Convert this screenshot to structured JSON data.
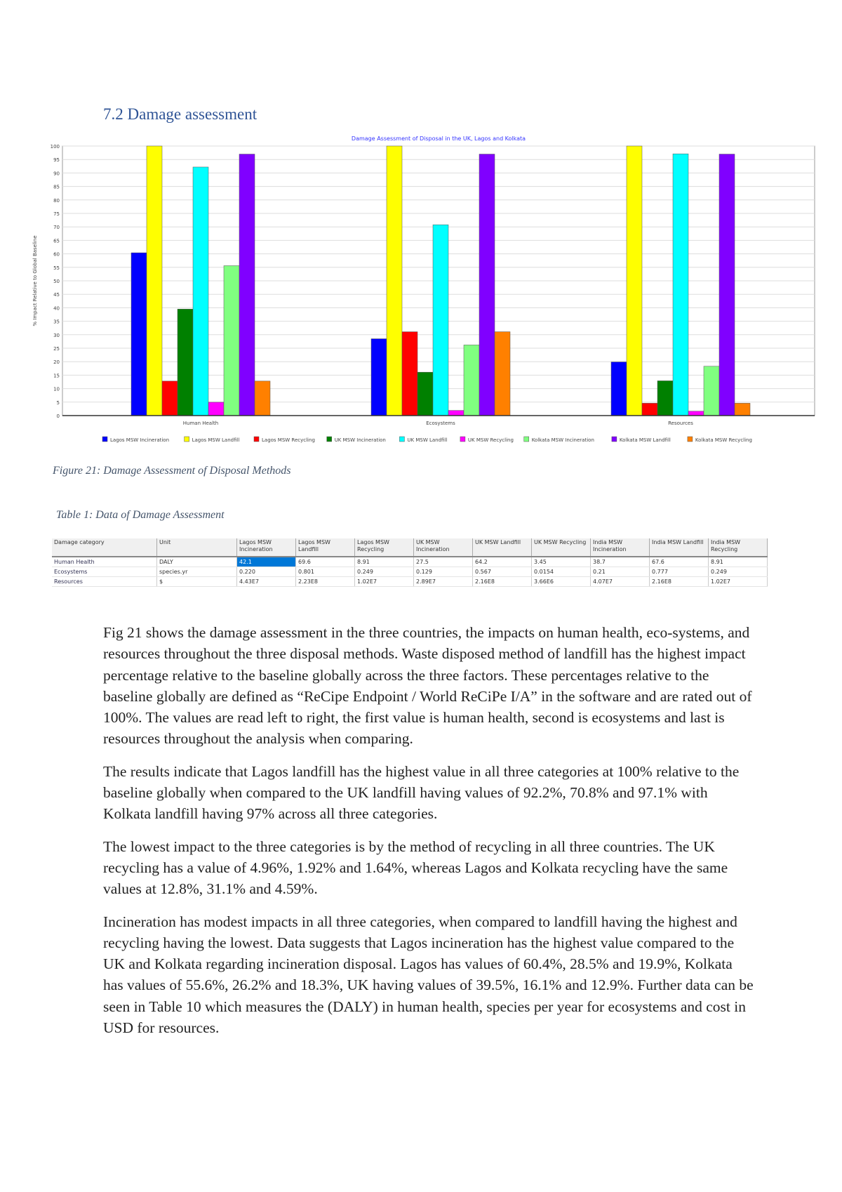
{
  "heading": "7.2 Damage assessment",
  "figure_caption": "Figure 21: Damage Assessment of Disposal Methods",
  "table_caption": "Table 1: Data of Damage Assessment",
  "chart_data": {
    "type": "bar",
    "title": "Damage Assessment of Disposal in the UK, Lagos and Kolkata",
    "xlabel": "",
    "ylabel": "% Impact Relative to Global Baseline",
    "ylim": [
      0,
      100
    ],
    "yticks": [
      0,
      5,
      10,
      15,
      20,
      25,
      30,
      35,
      40,
      45,
      50,
      55,
      60,
      65,
      70,
      75,
      80,
      85,
      90,
      95,
      100
    ],
    "grid": true,
    "legend": "bottom",
    "categories": [
      "Human Health",
      "Ecosystems",
      "Resources"
    ],
    "series": [
      {
        "name": "Lagos MSW Incineration",
        "color": "#0000ff",
        "values": [
          60.4,
          28.5,
          19.9
        ]
      },
      {
        "name": "Lagos MSW Landfill",
        "color": "#ffff00",
        "values": [
          100,
          100,
          100
        ]
      },
      {
        "name": "Lagos MSW Recycling",
        "color": "#ff0000",
        "values": [
          12.8,
          31.1,
          4.59
        ]
      },
      {
        "name": "UK MSW Incineration",
        "color": "#008000",
        "values": [
          39.5,
          16.1,
          12.9
        ]
      },
      {
        "name": "UK MSW Landfill",
        "color": "#00ffff",
        "values": [
          92.2,
          70.8,
          97.1
        ]
      },
      {
        "name": "UK MSW Recycling",
        "color": "#ff00ff",
        "values": [
          4.96,
          1.92,
          1.64
        ]
      },
      {
        "name": "Kolkata MSW Incineration",
        "color": "#80ff80",
        "values": [
          55.6,
          26.2,
          18.3
        ]
      },
      {
        "name": "Kolkata MSW Landfill",
        "color": "#8000ff",
        "values": [
          97,
          97,
          97
        ]
      },
      {
        "name": "Kolkata MSW Recycling",
        "color": "#ff8000",
        "values": [
          12.8,
          31.1,
          4.59
        ]
      }
    ]
  },
  "table": {
    "headers": [
      "Damage category",
      "Unit",
      "Lagos MSW Incineration",
      "Lagos MSW Landfill",
      "Lagos MSW Recycling",
      "UK MSW Incineration",
      "UK MSW Landfill",
      "UK MSW Recycling",
      "India MSW Incineration",
      "India MSW Landfill",
      "India MSW Recycling"
    ],
    "rows": [
      [
        "Human Health",
        "DALY",
        "42.1",
        "69.6",
        "8.91",
        "27.5",
        "64.2",
        "3.45",
        "38.7",
        "67.6",
        "8.91"
      ],
      [
        "Ecosystems",
        "species.yr",
        "0.220",
        "0.801",
        "0.249",
        "0.129",
        "0.567",
        "0.0154",
        "0.21",
        "0.777",
        "0.249"
      ],
      [
        "Resources",
        "$",
        "4.43E7",
        "2.23E8",
        "1.02E7",
        "2.89E7",
        "2.16E8",
        "3.66E6",
        "4.07E7",
        "2.16E8",
        "1.02E7"
      ]
    ]
  },
  "paragraphs": [
    "Fig 21 shows the damage assessment in the three countries, the impacts on human health, eco-systems, and resources throughout the three disposal methods. Waste disposed method of landfill has the highest impact percentage relative to the baseline globally across the three factors. These percentages relative to the baseline globally are defined as “ReCipe Endpoint / World ReCiPe I/A” in the software and are rated out of 100%. The values are read left to right, the first value is human health, second is ecosystems and last is resources throughout the analysis when comparing.",
    "The results indicate that Lagos landfill has the highest value in all three categories at 100% relative to the baseline globally when compared to the UK landfill having values of 92.2%, 70.8% and 97.1% with Kolkata landfill having 97% across all three categories.",
    "The lowest impact to the three categories is by the method of recycling in all three countries. The UK recycling has a value of 4.96%, 1.92% and 1.64%, whereas Lagos and Kolkata recycling have the same values at 12.8%, 31.1% and 4.59%.",
    "Incineration has modest impacts in all three categories, when compared to landfill having the highest and recycling having the lowest. Data suggests that Lagos incineration has the highest value compared to the UK and Kolkata regarding incineration disposal. Lagos has values of 60.4%, 28.5% and 19.9%, Kolkata has values of 55.6%, 26.2% and 18.3%, UK having values of 39.5%, 16.1% and 12.9%. Further data can be seen in Table 10 which measures the (DALY) in human health, species per year for ecosystems and cost in USD for resources."
  ]
}
